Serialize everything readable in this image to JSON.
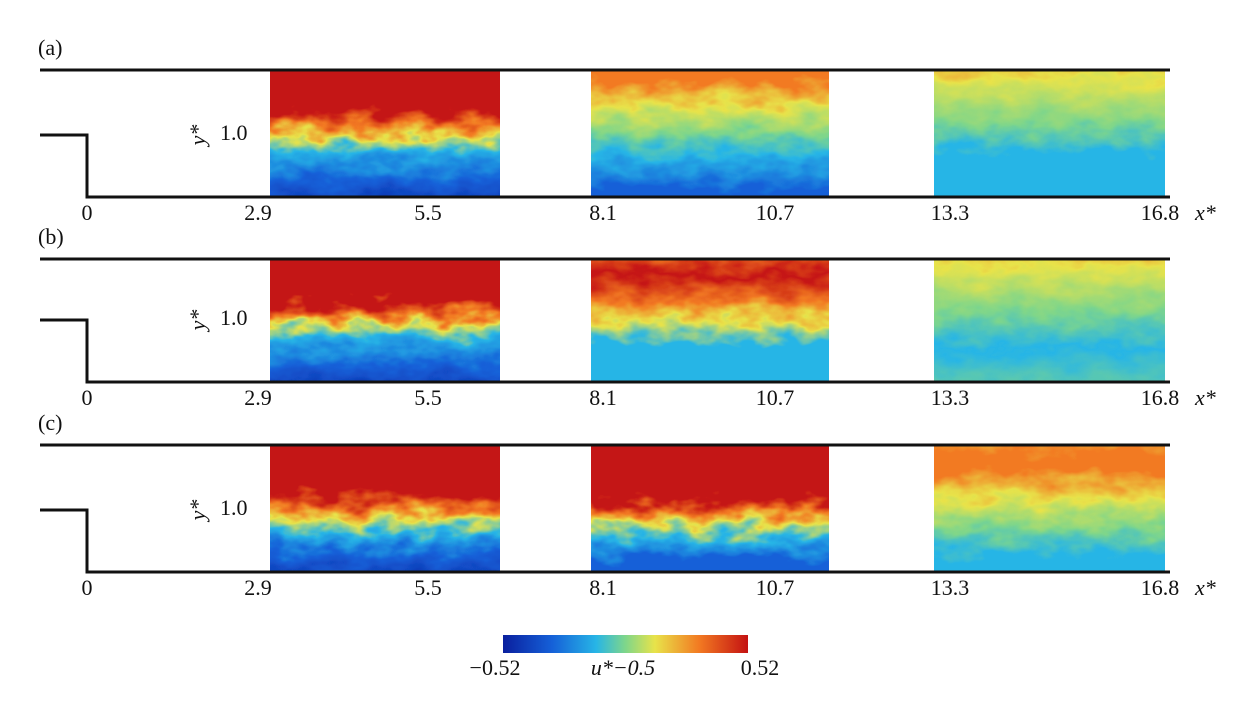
{
  "panels": [
    {
      "label": "(a)",
      "y_label": "y*",
      "y_tick": "1.0",
      "x_ticks": [
        "0",
        "2.9",
        "5.5",
        "8.1",
        "10.7",
        "13.3",
        "16.8"
      ],
      "x_label": "x*"
    },
    {
      "label": "(b)",
      "y_label": "y*",
      "y_tick": "1.0",
      "x_ticks": [
        "0",
        "2.9",
        "5.5",
        "8.1",
        "10.7",
        "13.3",
        "16.8"
      ],
      "x_label": "x*"
    },
    {
      "label": "(c)",
      "y_label": "y*",
      "y_tick": "1.0",
      "x_ticks": [
        "0",
        "2.9",
        "5.5",
        "8.1",
        "10.7",
        "13.3",
        "16.8"
      ],
      "x_label": "x*"
    }
  ],
  "colorbar": {
    "min_label": "−0.52",
    "label": "u*−0.5",
    "max_label": "0.52"
  }
}
